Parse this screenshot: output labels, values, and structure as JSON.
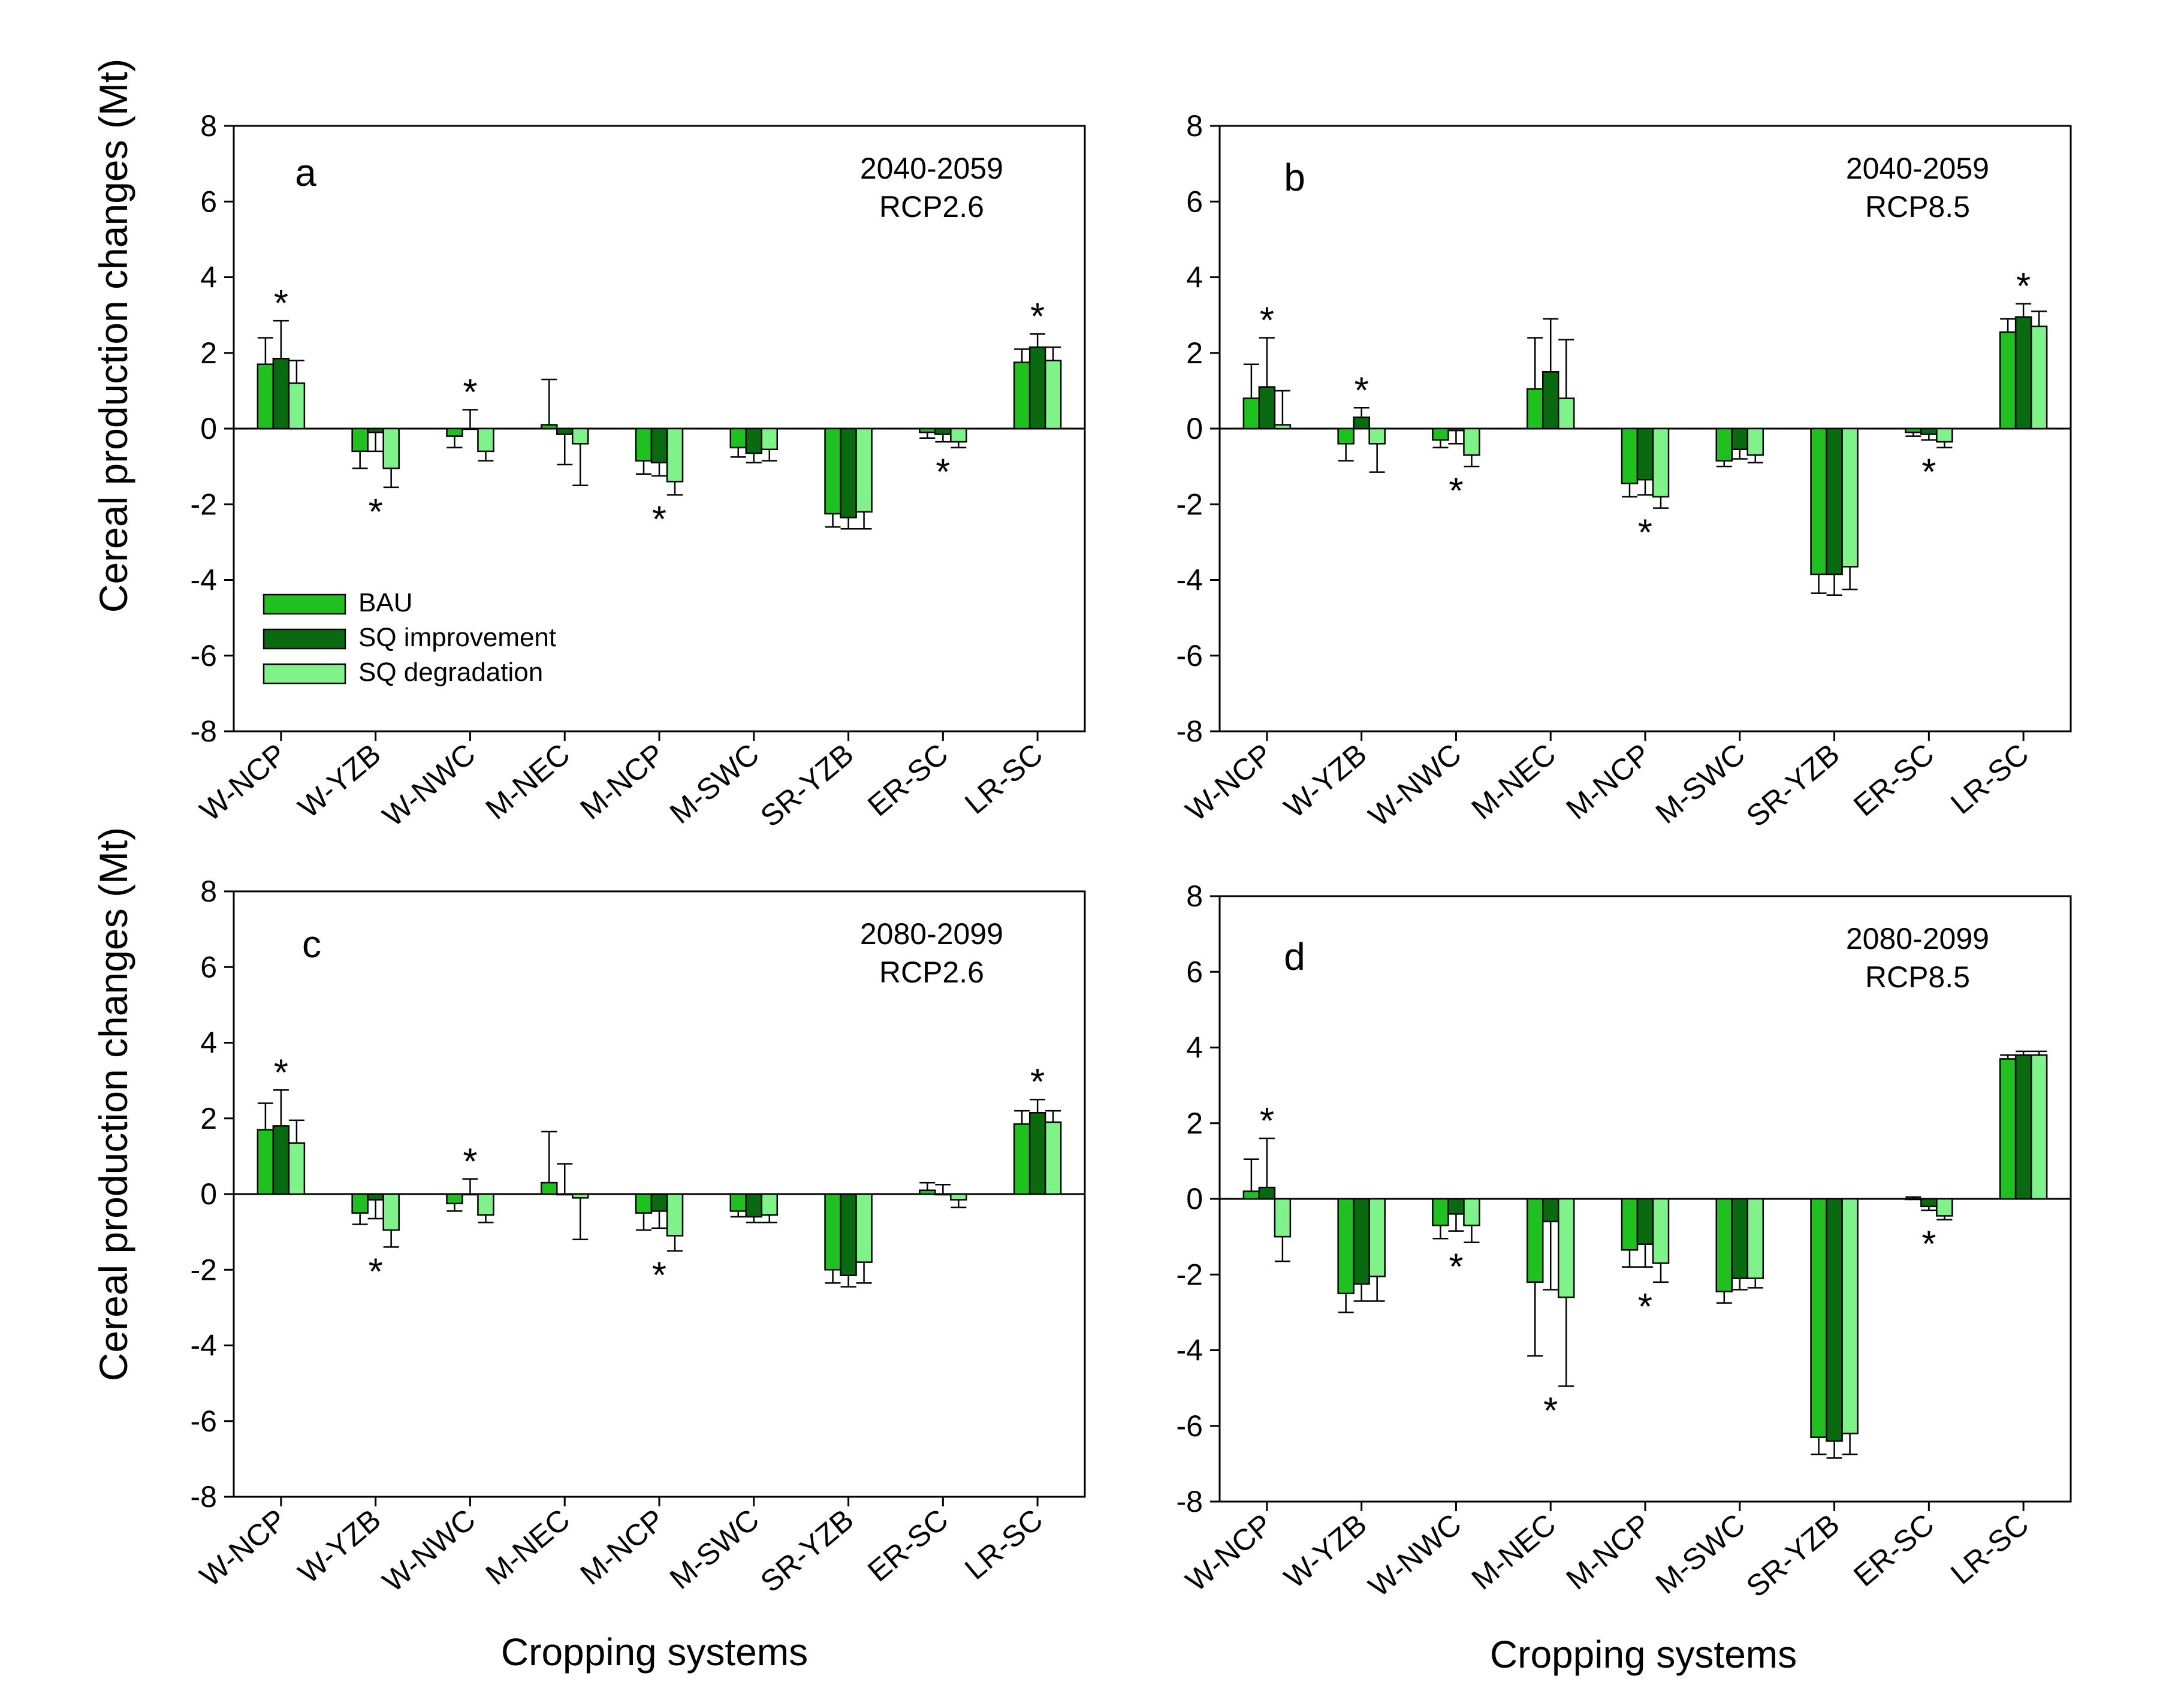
{
  "figure": {
    "ylabel": "Cereal production changes (Mt)",
    "xlabel": "Cropping systems"
  },
  "legend": [
    "BAU",
    "SQ improvement",
    "SQ degradation"
  ],
  "colors": {
    "BAU": "#1fc01f",
    "SQ improvement": "#0a6a10",
    "SQ degradation": "#7ff28a"
  },
  "chart_data": [
    {
      "type": "bar",
      "panel": "a",
      "annotation": [
        "2040-2059",
        "RCP2.6"
      ],
      "ylabel": "Cereal production changes (Mt)",
      "ylim": [
        -8,
        8
      ],
      "yticks": [
        -8,
        -6,
        -4,
        -2,
        0,
        2,
        4,
        6,
        8
      ],
      "categories": [
        "W-NCP",
        "W-YZB",
        "W-NWC",
        "M-NEC",
        "M-NCP",
        "M-SWC",
        "SR-YZB",
        "ER-SC",
        "LR-SC"
      ],
      "series": [
        {
          "name": "BAU",
          "values": [
            1.7,
            -0.6,
            -0.2,
            0.1,
            -0.85,
            -0.5,
            -2.25,
            -0.1,
            1.75
          ],
          "errors": [
            0.7,
            0.45,
            0.3,
            1.2,
            0.35,
            0.25,
            0.35,
            0.15,
            0.35
          ]
        },
        {
          "name": "SQ improvement",
          "values": [
            1.85,
            -0.1,
            0.0,
            -0.15,
            -0.9,
            -0.65,
            -2.35,
            -0.15,
            2.15
          ],
          "errors": [
            1.0,
            0.5,
            0.5,
            0.8,
            0.35,
            0.25,
            0.3,
            0.2,
            0.35
          ]
        },
        {
          "name": "SQ degradation",
          "values": [
            1.2,
            -1.05,
            -0.6,
            -0.4,
            -1.4,
            -0.55,
            -2.2,
            -0.35,
            1.8
          ],
          "errors": [
            0.6,
            0.5,
            0.25,
            1.1,
            0.35,
            0.3,
            0.45,
            0.15,
            0.35
          ]
        }
      ],
      "stars": [
        {
          "category": "W-NCP",
          "position": "above"
        },
        {
          "category": "W-YZB",
          "position": "below"
        },
        {
          "category": "W-NWC",
          "position": "above"
        },
        {
          "category": "M-NCP",
          "position": "below"
        },
        {
          "category": "ER-SC",
          "position": "below"
        },
        {
          "category": "LR-SC",
          "position": "above"
        }
      ],
      "legend_placement": "lower-left"
    },
    {
      "type": "bar",
      "panel": "b",
      "annotation": [
        "2040-2059",
        "RCP8.5"
      ],
      "ylim": [
        -8,
        8
      ],
      "yticks": [
        -8,
        -6,
        -4,
        -2,
        0,
        2,
        4,
        6,
        8
      ],
      "categories": [
        "W-NCP",
        "W-YZB",
        "W-NWC",
        "M-NEC",
        "M-NCP",
        "M-SWC",
        "SR-YZB",
        "ER-SC",
        "LR-SC"
      ],
      "series": [
        {
          "name": "BAU",
          "values": [
            0.8,
            -0.4,
            -0.3,
            1.05,
            -1.45,
            -0.85,
            -3.85,
            -0.1,
            2.55
          ],
          "errors": [
            0.9,
            0.45,
            0.2,
            1.35,
            0.35,
            0.15,
            0.5,
            0.1,
            0.35
          ]
        },
        {
          "name": "SQ improvement",
          "values": [
            1.1,
            0.3,
            -0.05,
            1.5,
            -1.35,
            -0.55,
            -3.85,
            -0.15,
            2.95
          ],
          "errors": [
            1.3,
            0.25,
            0.35,
            1.4,
            0.4,
            0.25,
            0.55,
            0.15,
            0.35
          ]
        },
        {
          "name": "SQ degradation",
          "values": [
            0.1,
            -0.4,
            -0.7,
            0.8,
            -1.8,
            -0.7,
            -3.65,
            -0.35,
            2.7
          ],
          "errors": [
            0.9,
            0.75,
            0.3,
            1.55,
            0.3,
            0.2,
            0.6,
            0.15,
            0.4
          ]
        }
      ],
      "stars": [
        {
          "category": "W-NCP",
          "position": "above"
        },
        {
          "category": "W-YZB",
          "position": "above"
        },
        {
          "category": "W-NWC",
          "position": "below"
        },
        {
          "category": "M-NCP",
          "position": "below"
        },
        {
          "category": "ER-SC",
          "position": "below"
        },
        {
          "category": "LR-SC",
          "position": "above"
        }
      ]
    },
    {
      "type": "bar",
      "panel": "c",
      "annotation": [
        "2080-2099",
        "RCP2.6"
      ],
      "ylabel": "Cereal production changes (Mt)",
      "ylim": [
        -8,
        8
      ],
      "yticks": [
        -8,
        -6,
        -4,
        -2,
        0,
        2,
        4,
        6,
        8
      ],
      "categories": [
        "W-NCP",
        "W-YZB",
        "W-NWC",
        "M-NEC",
        "M-NCP",
        "M-SWC",
        "SR-YZB",
        "ER-SC",
        "LR-SC"
      ],
      "series": [
        {
          "name": "BAU",
          "values": [
            1.7,
            -0.5,
            -0.25,
            0.3,
            -0.5,
            -0.45,
            -2.0,
            0.1,
            1.85
          ],
          "errors": [
            0.7,
            0.3,
            0.2,
            1.35,
            0.45,
            0.15,
            0.35,
            0.2,
            0.35
          ]
        },
        {
          "name": "SQ improvement",
          "values": [
            1.8,
            -0.15,
            0.0,
            0.0,
            -0.45,
            -0.6,
            -2.15,
            0.0,
            2.15
          ],
          "errors": [
            0.95,
            0.5,
            0.4,
            0.8,
            0.45,
            0.15,
            0.3,
            0.25,
            0.35
          ]
        },
        {
          "name": "SQ degradation",
          "values": [
            1.35,
            -0.95,
            -0.55,
            -0.1,
            -1.1,
            -0.55,
            -1.8,
            -0.15,
            1.9
          ],
          "errors": [
            0.6,
            0.45,
            0.2,
            1.1,
            0.4,
            0.2,
            0.55,
            0.2,
            0.3
          ]
        }
      ],
      "stars": [
        {
          "category": "W-NCP",
          "position": "above"
        },
        {
          "category": "W-YZB",
          "position": "below"
        },
        {
          "category": "W-NWC",
          "position": "above"
        },
        {
          "category": "M-NCP",
          "position": "below"
        },
        {
          "category": "LR-SC",
          "position": "above"
        }
      ]
    },
    {
      "type": "bar",
      "panel": "d",
      "annotation": [
        "2080-2099",
        "RCP8.5"
      ],
      "ylim": [
        -8,
        8
      ],
      "yticks": [
        -8,
        -6,
        -4,
        -2,
        0,
        2,
        4,
        6,
        8
      ],
      "categories": [
        "W-NCP",
        "W-YZB",
        "W-NWC",
        "M-NEC",
        "M-NCP",
        "M-SWC",
        "SR-YZB",
        "ER-SC",
        "LR-SC"
      ],
      "series": [
        {
          "name": "BAU",
          "values": [
            0.2,
            -2.5,
            -0.7,
            -2.2,
            -1.35,
            -2.45,
            -6.3,
            0.0,
            3.7
          ],
          "errors": [
            0.85,
            0.5,
            0.35,
            1.95,
            0.45,
            0.3,
            0.45,
            0.05,
            0.1
          ]
        },
        {
          "name": "SQ improvement",
          "values": [
            0.3,
            -2.25,
            -0.4,
            -0.6,
            -1.2,
            -2.1,
            -6.4,
            -0.2,
            3.8
          ],
          "errors": [
            1.3,
            0.45,
            0.45,
            1.8,
            0.6,
            0.3,
            0.45,
            0.1,
            0.1
          ]
        },
        {
          "name": "SQ degradation",
          "values": [
            -1.0,
            -2.05,
            -0.7,
            -2.6,
            -1.7,
            -2.1,
            -6.2,
            -0.45,
            3.8
          ],
          "errors": [
            0.65,
            0.65,
            0.45,
            2.35,
            0.5,
            0.25,
            0.55,
            0.1,
            0.1
          ]
        }
      ],
      "stars": [
        {
          "category": "W-NCP",
          "position": "above"
        },
        {
          "category": "W-NWC",
          "position": "below"
        },
        {
          "category": "M-NEC",
          "position": "below"
        },
        {
          "category": "M-NCP",
          "position": "below"
        },
        {
          "category": "ER-SC",
          "position": "below"
        }
      ]
    }
  ]
}
